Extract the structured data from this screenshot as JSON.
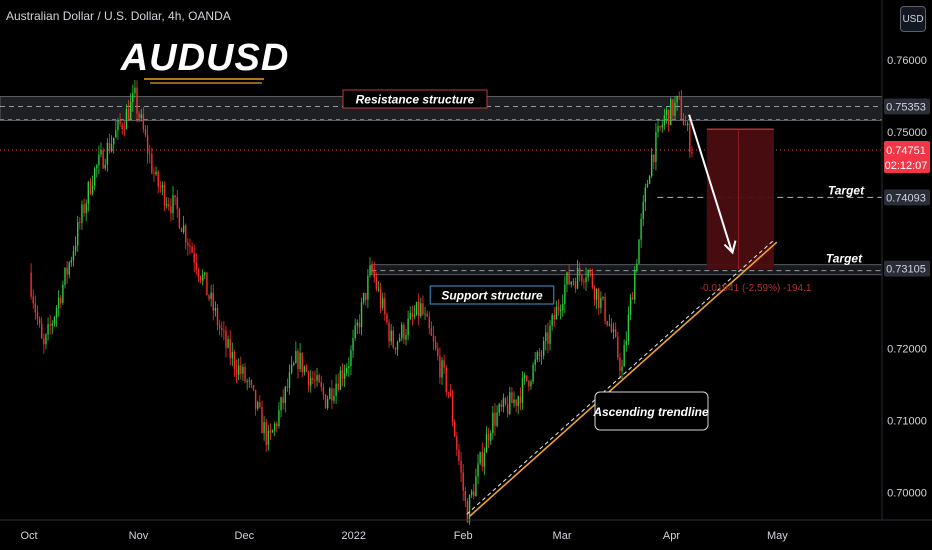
{
  "header": {
    "symbol_line": "Australian Dollar / U.S. Dollar, 4h, OANDA",
    "currency_badge": "USD"
  },
  "chart_data": {
    "type": "candlestick",
    "title": "AUDUSD",
    "x_ticks": [
      {
        "label": "Oct",
        "day": 0
      },
      {
        "label": "Nov",
        "day": 31
      },
      {
        "label": "Dec",
        "day": 61
      },
      {
        "label": "2022",
        "day": 92
      },
      {
        "label": "Feb",
        "day": 123
      },
      {
        "label": "Mar",
        "day": 151
      },
      {
        "label": "Apr",
        "day": 182
      },
      {
        "label": "May",
        "day": 212
      }
    ],
    "y_ticks": [
      "0.76000",
      "0.75000",
      "0.72000",
      "0.71000",
      "0.70000"
    ],
    "ylim": [
      0.6962,
      0.7683
    ],
    "price_path": [
      [
        0,
        0.7305
      ],
      [
        4,
        0.7196
      ],
      [
        11,
        0.7311
      ],
      [
        18,
        0.744
      ],
      [
        26,
        0.751
      ],
      [
        30,
        0.7546
      ],
      [
        36,
        0.743
      ],
      [
        42,
        0.739
      ],
      [
        49,
        0.73
      ],
      [
        56,
        0.72
      ],
      [
        62,
        0.715
      ],
      [
        68,
        0.7068
      ],
      [
        76,
        0.7187
      ],
      [
        84,
        0.713
      ],
      [
        91,
        0.7187
      ],
      [
        97,
        0.7311
      ],
      [
        103,
        0.7205
      ],
      [
        111,
        0.7255
      ],
      [
        119,
        0.7138
      ],
      [
        124,
        0.697
      ],
      [
        131,
        0.71
      ],
      [
        138,
        0.713
      ],
      [
        146,
        0.72
      ],
      [
        152,
        0.729
      ],
      [
        158,
        0.731
      ],
      [
        164,
        0.724
      ],
      [
        168,
        0.717
      ],
      [
        172,
        0.7322
      ],
      [
        176,
        0.746
      ],
      [
        180,
        0.752
      ],
      [
        184,
        0.754
      ],
      [
        188,
        0.7475
      ]
    ],
    "current_price": {
      "value": "0.74751",
      "countdown": "02:12:07"
    },
    "levels": [
      {
        "label": "Resistance structure",
        "value": "0.75353"
      },
      {
        "label": "Support structure",
        "value": "0.73105"
      }
    ],
    "targets": [
      {
        "label": "Target",
        "value": "0.74093"
      },
      {
        "label": "Target",
        "value": "0.73105"
      }
    ],
    "trendline": {
      "label": "Ascending trendline",
      "from": [
        124,
        0.697
      ],
      "to": [
        211,
        0.735
      ]
    },
    "short_position": {
      "entry": 0.7504,
      "target": 0.731,
      "stats": "-0.01941 (-2.59%) -194.1"
    },
    "colors": {
      "up": "#26a69a",
      "candle_up": "#2ecc40",
      "candle_down": "#ff2e2e",
      "trendline": "#f0a030",
      "short_box": "#4a0d10",
      "price_label": "#f23645"
    }
  }
}
